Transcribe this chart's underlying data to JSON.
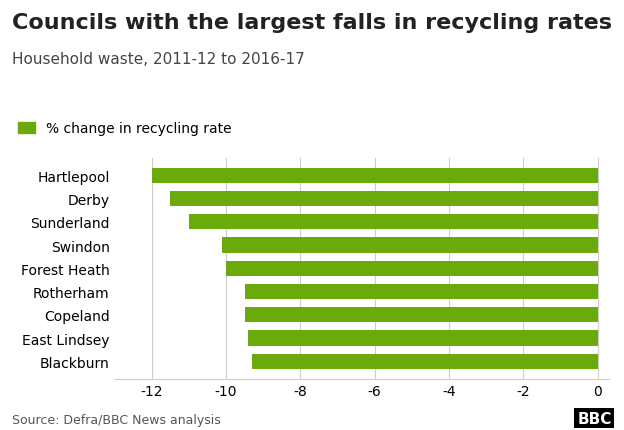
{
  "title": "Councils with the largest falls in recycling rates",
  "subtitle": "Household waste, 2011-12 to 2016-17",
  "legend_label": "% change in recycling rate",
  "categories": [
    "Hartlepool",
    "Derby",
    "Sunderland",
    "Swindon",
    "Forest Heath",
    "Rotherham",
    "Copeland",
    "East Lindsey",
    "Blackburn"
  ],
  "values": [
    -12.0,
    -11.5,
    -11.0,
    -10.1,
    -10.0,
    -9.5,
    -9.5,
    -9.4,
    -9.3
  ],
  "bar_color": "#6aaa0a",
  "background_color": "#ffffff",
  "grid_color": "#cccccc",
  "xlim": [
    -13,
    0.3
  ],
  "xticks": [
    -12,
    -10,
    -8,
    -6,
    -4,
    -2,
    0
  ],
  "source_text": "Source: Defra/BBC News analysis",
  "bbc_text": "BBC",
  "title_fontsize": 16,
  "subtitle_fontsize": 11,
  "tick_fontsize": 10,
  "label_fontsize": 10,
  "source_fontsize": 9
}
